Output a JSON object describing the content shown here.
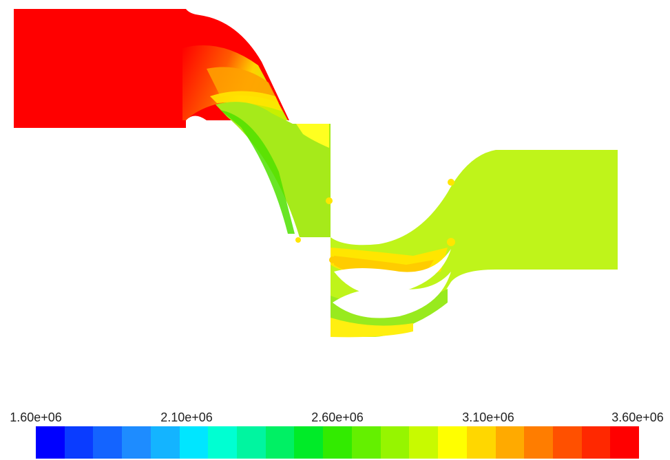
{
  "colorbar": {
    "tick_labels": [
      "1.60e+06",
      "2.10e+06",
      "2.60e+06",
      "3.10e+06",
      "3.60e+06"
    ],
    "min": 1600000,
    "max": 3600000,
    "colors": [
      "#0000ff",
      "#0a3cff",
      "#1464ff",
      "#1e8cff",
      "#14b4ff",
      "#00e6ff",
      "#00ffd2",
      "#00f5a0",
      "#00f064",
      "#00eb28",
      "#32eb00",
      "#64f000",
      "#96f500",
      "#c8fa00",
      "#ffff00",
      "#ffd700",
      "#ffaa00",
      "#ff7d00",
      "#ff5000",
      "#ff2800",
      "#ff0000"
    ]
  }
}
